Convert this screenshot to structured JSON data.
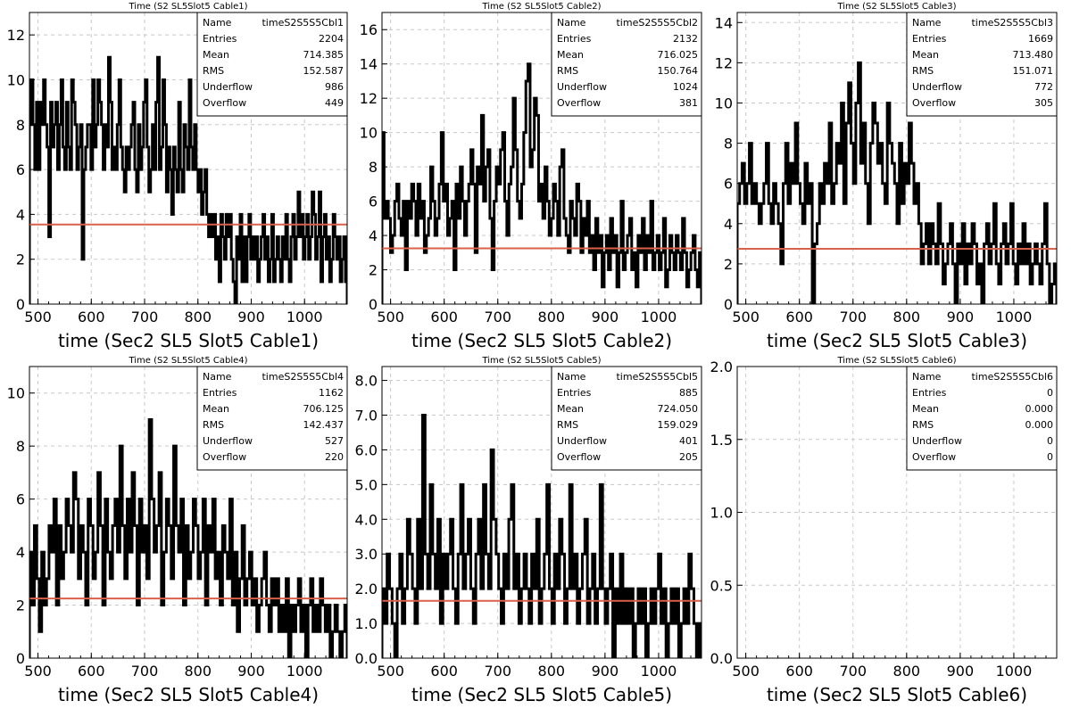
{
  "chart_data": [
    {
      "type": "histogram",
      "title": "Time (S2 SL5Slot5 Cable1)",
      "xlabel": "time (Sec2 SL5 Slot5 Cable1)",
      "ylabel": "",
      "xlim": [
        484,
        1080
      ],
      "ylim": [
        0,
        13
      ],
      "xticks": [
        "500",
        "600",
        "700",
        "800",
        "900",
        "1000"
      ],
      "yticks": [
        "0",
        "2",
        "4",
        "6",
        "8",
        "10",
        "12"
      ],
      "fit_level": 3.55,
      "stats": [
        {
          "label": "Name",
          "value": "timeS2S5S5Cbl1"
        },
        {
          "label": "Entries",
          "value": "2204"
        },
        {
          "label": "Mean",
          "value": "714.385"
        },
        {
          "label": "RMS",
          "value": "152.587"
        },
        {
          "label": "Underflow",
          "value": "986"
        },
        {
          "label": "Overflow",
          "value": "449"
        }
      ],
      "series": [
        {
          "values": [
            8,
            10,
            8,
            6,
            9,
            6,
            9,
            8,
            10,
            8,
            7,
            3,
            9,
            7,
            8,
            9,
            6,
            8,
            10,
            7,
            6,
            9,
            7,
            6,
            10,
            9,
            8,
            6,
            7,
            8,
            2,
            6,
            7,
            8,
            8,
            6,
            10,
            7,
            8,
            10,
            9,
            8,
            6,
            8,
            7,
            11,
            9,
            6,
            7,
            6,
            8,
            10,
            7,
            6,
            5,
            7,
            6,
            7,
            8,
            9,
            6,
            5,
            8,
            6,
            7,
            9,
            10,
            7,
            5,
            6,
            8,
            6,
            9,
            11,
            6,
            7,
            10,
            8,
            5,
            7,
            6,
            4,
            7,
            6,
            5,
            9,
            6,
            5,
            8,
            7,
            6,
            10,
            7,
            6,
            8,
            6,
            5,
            6,
            4,
            5,
            6,
            4,
            3,
            4,
            3,
            4,
            2,
            3,
            1,
            4,
            3,
            2,
            4,
            3,
            4,
            2,
            1,
            0,
            3,
            2,
            4,
            1,
            3,
            1,
            3,
            4,
            2,
            3,
            2,
            3,
            1,
            2,
            3,
            4,
            2,
            3,
            1,
            2,
            4,
            1,
            2,
            3,
            2,
            1,
            3,
            2,
            4,
            2,
            1,
            3,
            4,
            2,
            3,
            5,
            3,
            4,
            2,
            3,
            4,
            2,
            3,
            5,
            4,
            2,
            3,
            5,
            1,
            3,
            4,
            2,
            3,
            1,
            2,
            4,
            3,
            2,
            3,
            1,
            2,
            3,
            1
          ]
        }
      ]
    },
    {
      "type": "histogram",
      "title": "Time (S2 SL5Slot5 Cable2)",
      "xlabel": "time (Sec2 SL5 Slot5 Cable2)",
      "ylabel": "",
      "xlim": [
        484,
        1080
      ],
      "ylim": [
        0,
        17
      ],
      "xticks": [
        "500",
        "600",
        "700",
        "800",
        "900",
        "1000"
      ],
      "yticks": [
        "0",
        "2",
        "4",
        "6",
        "8",
        "10",
        "12",
        "14",
        "16"
      ],
      "fit_level": 3.25,
      "stats": [
        {
          "label": "Name",
          "value": "timeS2S5S5Cbl2"
        },
        {
          "label": "Entries",
          "value": "2132"
        },
        {
          "label": "Mean",
          "value": "716.025"
        },
        {
          "label": "RMS",
          "value": "150.764"
        },
        {
          "label": "Underflow",
          "value": "1024"
        },
        {
          "label": "Overflow",
          "value": "381"
        }
      ],
      "series": [
        {
          "values": [
            10,
            5,
            6,
            5,
            3,
            4,
            6,
            7,
            5,
            4,
            6,
            2,
            6,
            5,
            7,
            6,
            4,
            7,
            5,
            6,
            3,
            4,
            5,
            8,
            6,
            4,
            5,
            7,
            10,
            6,
            7,
            4,
            5,
            6,
            2,
            7,
            5,
            8,
            6,
            4,
            6,
            7,
            9,
            7,
            3,
            8,
            7,
            11,
            6,
            8,
            9,
            5,
            2,
            6,
            8,
            7,
            9,
            10,
            6,
            4,
            7,
            8,
            12,
            9,
            6,
            5,
            7,
            10,
            13,
            14,
            8,
            9,
            12,
            11,
            6,
            7,
            5,
            8,
            6,
            4,
            5,
            7,
            6,
            4,
            8,
            9,
            5,
            4,
            3,
            6,
            5,
            4,
            7,
            6,
            3,
            5,
            4,
            6,
            3,
            4,
            2,
            5,
            3,
            4,
            1,
            3,
            4,
            2,
            5,
            3,
            4,
            1,
            3,
            6,
            2,
            3,
            4,
            5,
            2,
            3,
            1,
            4,
            3,
            5,
            2,
            4,
            3,
            6,
            2,
            3,
            4,
            2,
            3,
            5,
            1,
            2,
            4,
            3,
            2,
            4,
            3,
            2,
            5,
            3,
            1,
            2,
            3,
            4,
            2,
            1,
            3
          ]
        }
      ]
    },
    {
      "type": "histogram",
      "title": "Time (S2 SL5Slot5 Cable3)",
      "xlabel": "time (Sec2 SL5 Slot5 Cable3)",
      "ylabel": "",
      "xlim": [
        484,
        1080
      ],
      "ylim": [
        0,
        14.5
      ],
      "xticks": [
        "500",
        "600",
        "700",
        "800",
        "900",
        "1000"
      ],
      "yticks": [
        "0",
        "2",
        "4",
        "6",
        "8",
        "10",
        "12",
        "14"
      ],
      "fit_level": 2.75,
      "stats": [
        {
          "label": "Name",
          "value": "timeS2S5S5Cbl3"
        },
        {
          "label": "Entries",
          "value": "1669"
        },
        {
          "label": "Mean",
          "value": "713.480"
        },
        {
          "label": "RMS",
          "value": "151.071"
        },
        {
          "label": "Underflow",
          "value": "772"
        },
        {
          "label": "Overflow",
          "value": "305"
        }
      ],
      "series": [
        {
          "values": [
            5,
            6,
            7,
            5,
            6,
            8,
            5,
            6,
            5,
            4,
            5,
            6,
            8,
            5,
            4,
            6,
            5,
            4,
            2,
            6,
            8,
            5,
            7,
            6,
            9,
            6,
            5,
            4,
            7,
            5,
            6,
            0,
            3,
            4,
            6,
            5,
            7,
            6,
            9,
            5,
            6,
            8,
            7,
            10,
            5,
            9,
            11,
            8,
            6,
            10,
            12,
            7,
            9,
            6,
            4,
            8,
            10,
            9,
            7,
            8,
            6,
            5,
            10,
            8,
            7,
            6,
            4,
            8,
            5,
            7,
            6,
            9,
            7,
            5,
            6,
            4,
            2,
            3,
            4,
            2,
            4,
            3,
            2,
            5,
            3,
            1,
            2,
            3,
            4,
            2,
            0,
            3,
            2,
            4,
            1,
            3,
            2,
            4,
            3,
            1,
            2,
            0,
            3,
            4,
            2,
            3,
            5,
            2,
            1,
            3,
            4,
            2,
            3,
            5,
            2,
            1,
            3,
            2,
            4,
            2,
            3,
            1,
            2,
            3,
            2,
            1,
            3,
            5,
            2,
            0,
            1,
            2
          ]
        }
      ]
    },
    {
      "type": "histogram",
      "title": "Time (S2 SL5Slot5 Cable4)",
      "xlabel": "time (Sec2 SL5 Slot5 Cable4)",
      "ylabel": "",
      "xlim": [
        484,
        1080
      ],
      "ylim": [
        0,
        11
      ],
      "xticks": [
        "500",
        "600",
        "700",
        "800",
        "900",
        "1000"
      ],
      "yticks": [
        "0",
        "2",
        "4",
        "6",
        "8",
        "10"
      ],
      "fit_level": 2.25,
      "stats": [
        {
          "label": "Name",
          "value": "timeS2S5S5Cbl4"
        },
        {
          "label": "Entries",
          "value": "1162"
        },
        {
          "label": "Mean",
          "value": "706.125"
        },
        {
          "label": "RMS",
          "value": "142.437"
        },
        {
          "label": "Underflow",
          "value": "527"
        },
        {
          "label": "Overflow",
          "value": "220"
        }
      ],
      "series": [
        {
          "values": [
            4,
            2,
            5,
            3,
            1,
            4,
            2,
            3,
            5,
            4,
            6,
            2,
            5,
            3,
            4,
            6,
            5,
            4,
            7,
            6,
            3,
            5,
            4,
            2,
            6,
            5,
            3,
            4,
            7,
            5,
            2,
            6,
            4,
            3,
            5,
            6,
            4,
            8,
            5,
            3,
            6,
            4,
            7,
            5,
            2,
            6,
            4,
            5,
            3,
            9,
            6,
            4,
            5,
            7,
            2,
            4,
            6,
            5,
            3,
            8,
            5,
            4,
            6,
            2,
            5,
            3,
            4,
            6,
            5,
            3,
            4,
            6,
            2,
            5,
            4,
            6,
            3,
            4,
            2,
            5,
            4,
            3,
            6,
            2,
            4,
            1,
            3,
            5,
            2,
            3,
            4,
            2,
            3,
            1,
            2,
            3,
            4,
            2,
            1,
            3,
            2,
            3,
            1,
            2,
            1,
            3,
            0,
            2,
            1,
            2,
            3,
            1,
            2,
            0,
            2,
            3,
            1,
            2,
            1,
            3,
            2,
            1,
            2,
            0,
            1,
            2,
            1,
            0,
            1,
            2
          ]
        }
      ]
    },
    {
      "type": "histogram",
      "title": "Time (S2 SL5Slot5 Cable5)",
      "xlabel": "time (Sec2 SL5 Slot5 Cable5)",
      "ylabel": "",
      "xlim": [
        484,
        1080
      ],
      "ylim": [
        0,
        8.4
      ],
      "xticks": [
        "500",
        "600",
        "700",
        "800",
        "900",
        "1000"
      ],
      "yticks": [
        "0.0",
        "1.0",
        "2.0",
        "3.0",
        "4.0",
        "5.0",
        "6.0",
        "7.0",
        "8.0"
      ],
      "fit_level": 1.65,
      "stats": [
        {
          "label": "Name",
          "value": "timeS2S5S5Cbl5"
        },
        {
          "label": "Entries",
          "value": "885"
        },
        {
          "label": "Mean",
          "value": "724.050"
        },
        {
          "label": "RMS",
          "value": "159.029"
        },
        {
          "label": "Underflow",
          "value": "401"
        },
        {
          "label": "Overflow",
          "value": "205"
        }
      ],
      "series": [
        {
          "values": [
            2,
            1,
            3,
            2,
            1,
            0,
            2,
            3,
            1,
            2,
            4,
            3,
            2,
            1,
            4,
            2,
            7,
            3,
            2,
            5,
            3,
            2,
            4,
            1,
            3,
            2,
            3,
            4,
            2,
            1,
            3,
            5,
            2,
            3,
            4,
            2,
            1,
            3,
            4,
            2,
            5,
            3,
            2,
            6,
            4,
            3,
            2,
            1,
            3,
            2,
            4,
            5,
            2,
            3,
            1,
            2,
            3,
            2,
            1,
            3,
            2,
            4,
            1,
            2,
            3,
            5,
            2,
            1,
            3,
            2,
            4,
            3,
            1,
            2,
            5,
            2,
            3,
            1,
            2,
            3,
            4,
            1,
            2,
            3,
            1,
            2,
            5,
            2,
            1,
            2,
            3,
            0,
            2,
            1,
            3,
            1,
            2,
            1,
            2,
            0,
            1,
            2,
            1,
            2,
            0,
            1,
            2,
            1,
            2,
            3,
            1,
            2,
            0,
            1,
            2,
            1,
            2,
            0,
            1,
            2,
            1,
            3,
            2,
            1,
            0,
            1
          ]
        }
      ]
    },
    {
      "type": "histogram",
      "title": "Time (S2 SL5Slot5 Cable6)",
      "xlabel": "time (Sec2 SL5 Slot5 Cable6)",
      "ylabel": "",
      "xlim": [
        484,
        1080
      ],
      "ylim": [
        0,
        2.0
      ],
      "xticks": [
        "500",
        "600",
        "700",
        "800",
        "900",
        "1000"
      ],
      "yticks": [
        "0.0",
        "0.5",
        "1.0",
        "1.5",
        "2.0"
      ],
      "fit_level": null,
      "stats": [
        {
          "label": "Name",
          "value": "timeS2S5S5Cbl6"
        },
        {
          "label": "Entries",
          "value": "0"
        },
        {
          "label": "Mean",
          "value": "0.000"
        },
        {
          "label": "RMS",
          "value": "0.000"
        },
        {
          "label": "Underflow",
          "value": "0"
        },
        {
          "label": "Overflow",
          "value": "0"
        }
      ],
      "series": [
        {
          "values": []
        }
      ]
    }
  ],
  "colors": {
    "histogram": "#000000",
    "fit_line": "#d9604a",
    "grid": "#c8c8c8"
  }
}
